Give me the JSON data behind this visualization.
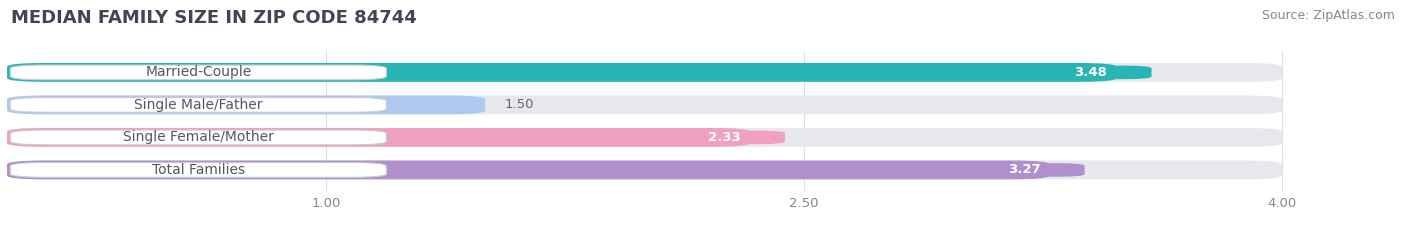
{
  "title": "MEDIAN FAMILY SIZE IN ZIP CODE 84744",
  "source": "Source: ZipAtlas.com",
  "categories": [
    "Married-Couple",
    "Single Male/Father",
    "Single Female/Mother",
    "Total Families"
  ],
  "values": [
    3.48,
    1.5,
    2.33,
    3.27
  ],
  "bar_colors": [
    "#2ab5b5",
    "#b0c8f0",
    "#f0a0c0",
    "#b090cc"
  ],
  "xlim_start": 0.0,
  "xlim_end": 4.3,
  "data_max": 4.0,
  "xticks": [
    1.0,
    2.5,
    4.0
  ],
  "bar_height": 0.58,
  "background_color": "#ffffff",
  "bar_bg_color": "#e8e8ec",
  "title_fontsize": 13,
  "source_fontsize": 9,
  "label_fontsize": 10,
  "value_fontsize": 9.5,
  "tick_fontsize": 9.5,
  "title_color": "#444455",
  "source_color": "#888888",
  "label_color": "#555566",
  "tick_color": "#888888",
  "value_text_color_inside": "#ffffff",
  "value_text_color_outside": "#666666",
  "grid_color": "#dddddd"
}
